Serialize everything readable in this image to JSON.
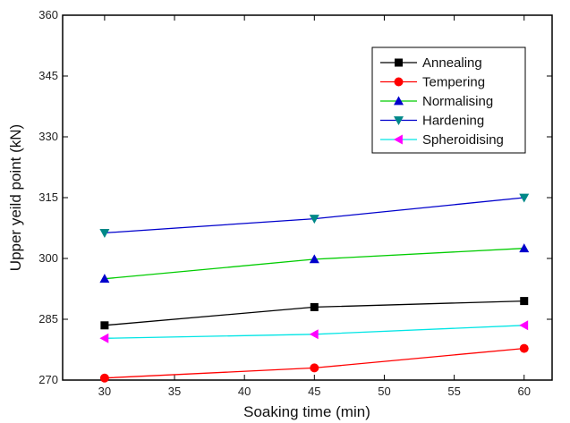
{
  "chart_data": {
    "type": "line",
    "title": "",
    "xlabel": "Soaking time (min)",
    "ylabel": "Upper yeild point (kN)",
    "xlim": [
      27,
      62
    ],
    "ylim": [
      270,
      360
    ],
    "x_ticks": [
      30,
      35,
      40,
      45,
      50,
      55,
      60
    ],
    "y_ticks": [
      270,
      285,
      300,
      315,
      330,
      345,
      360
    ],
    "grid": false,
    "legend_position": "top-right",
    "x": [
      30,
      45,
      60
    ],
    "series": [
      {
        "name": "Annealing",
        "values": [
          283.5,
          288.0,
          289.5
        ],
        "color": "#000000",
        "marker": "square"
      },
      {
        "name": "Tempering",
        "values": [
          270.5,
          273.0,
          277.8
        ],
        "color": "#ff0000",
        "marker": "circle"
      },
      {
        "name": "Normalising",
        "values": [
          295.0,
          299.8,
          302.5
        ],
        "color": "#00cc00",
        "marker_color": "#0000cc",
        "marker": "triangle-up"
      },
      {
        "name": "Hardening",
        "values": [
          306.3,
          309.8,
          315.0
        ],
        "color": "#0000cc",
        "marker_color": "#008888",
        "marker": "triangle-down"
      },
      {
        "name": "Spheroidising",
        "values": [
          280.3,
          281.3,
          283.5
        ],
        "color": "#00e5e5",
        "marker_color": "#ff00ff",
        "marker": "triangle-left"
      }
    ]
  }
}
